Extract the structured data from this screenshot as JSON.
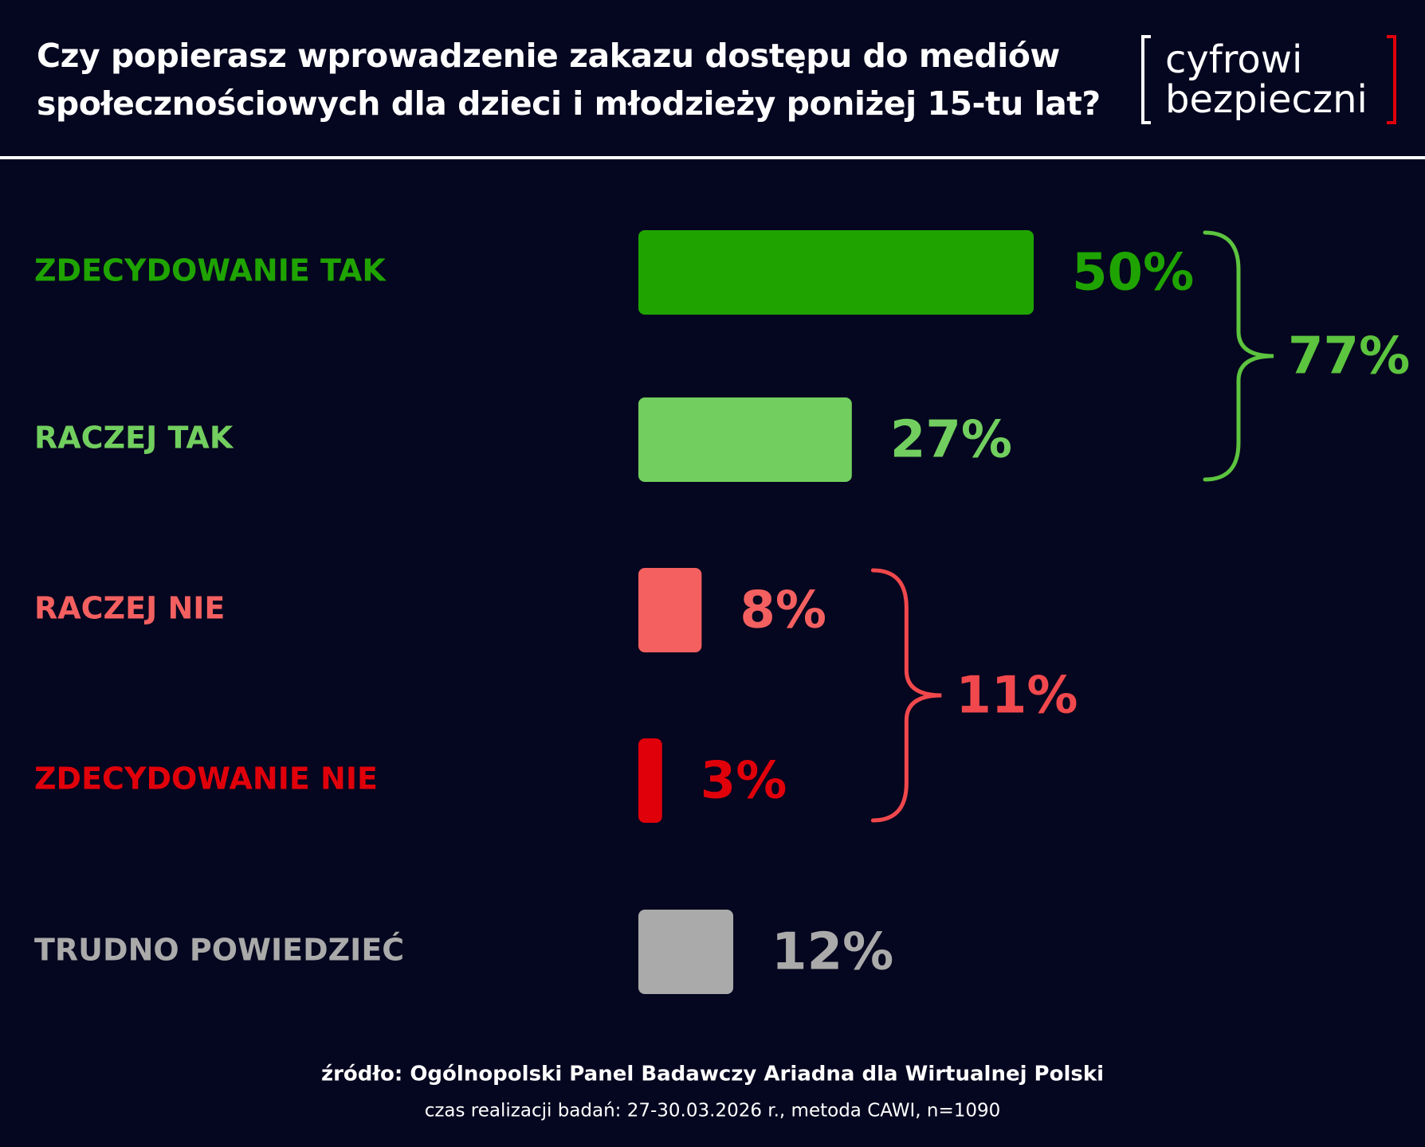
{
  "chart_data": {
    "type": "bar",
    "orientation": "horizontal",
    "title": "Czy popierasz wprowadzenie zakazu dostępu do mediów społecznościowych dla dzieci i młodzieży poniżej 15-tu lat?",
    "categories": [
      "ZDECYDOWANIE TAK",
      "RACZEJ TAK",
      "RACZEJ NIE",
      "ZDECYDOWANIE NIE",
      "TRUDNO POWIEDZIEĆ"
    ],
    "values": [
      50,
      27,
      8,
      3,
      12
    ],
    "value_labels": [
      "50%",
      "27%",
      "8%",
      "3%",
      "12%"
    ],
    "colors": [
      "#1fa300",
      "#72cf5f",
      "#f46060",
      "#e0000a",
      "#aaaaaa"
    ],
    "groups": [
      {
        "members": [
          0,
          1
        ],
        "value": 77,
        "value_label": "77%",
        "color": "#5cc43f"
      },
      {
        "members": [
          2,
          3
        ],
        "value": 11,
        "value_label": "11%",
        "color": "#f0484c"
      }
    ],
    "logo": [
      "cyfrowi",
      "bezpieczni"
    ],
    "source": "źródło: Ogólnopolski Panel Badawczy Ariadna dla Wirtualnej Polski",
    "note": "czas realizacji badań: 27-30.03.2026 r., metoda CAWI, n=1090"
  }
}
